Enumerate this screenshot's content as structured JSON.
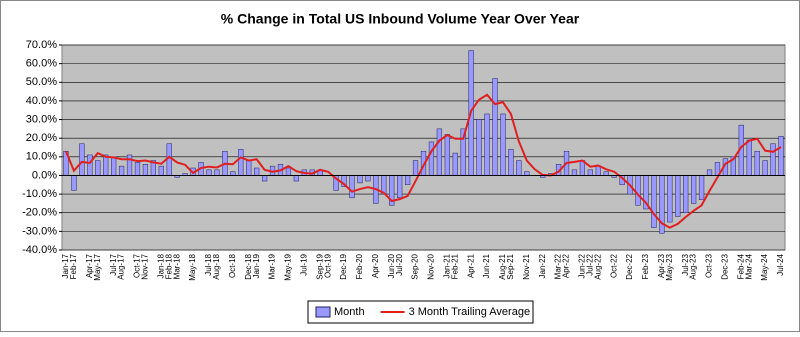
{
  "chart_data": {
    "type": "bar",
    "title": "% Change in Total US Inbound Volume Year Over Year",
    "categories": [
      "Jan-17",
      "Feb-17",
      null,
      "Apr-17",
      "May-17",
      null,
      "Jul-17",
      "Aug-17",
      null,
      "Oct-17",
      "Nov-17",
      null,
      "Jan-18",
      "Feb-18",
      "Mar-18",
      null,
      "May-18",
      null,
      "Jul-18",
      "Aug-18",
      null,
      "Oct-18",
      null,
      "Dec-18",
      "Jan-19",
      null,
      "Mar-19",
      null,
      "May-19",
      null,
      "Jul-19",
      null,
      "Sep-19",
      "Oct-19",
      null,
      "Dec-19",
      null,
      "Feb-20",
      null,
      "Apr-20",
      null,
      "Jun-20",
      "Jul-20",
      null,
      "Sep-20",
      null,
      "Nov-20",
      null,
      "Jan-21",
      "Feb-21",
      null,
      "Apr-21",
      null,
      "Jun-21",
      null,
      "Aug-21",
      "Sep-21",
      null,
      "Nov-21",
      null,
      "Jan-22",
      null,
      "Mar-22",
      "Apr-22",
      null,
      "Jun-22",
      "Jul-22",
      "Aug-22",
      null,
      "Oct-22",
      null,
      "Dec-22",
      null,
      "Feb-23",
      null,
      "Apr-23",
      "May-23",
      null,
      "Jul-23",
      "Aug-23",
      null,
      "Oct-23",
      null,
      "Dec-23",
      null,
      "Feb-24",
      "Mar-24",
      null,
      "May-24",
      null,
      "Jul-24"
    ],
    "series": [
      {
        "name": "Month",
        "type": "bar",
        "color": "#9999ff",
        "values": [
          13,
          -8,
          17,
          11,
          8,
          11,
          10,
          5,
          11,
          7,
          6,
          8,
          5,
          17,
          -1,
          1,
          4,
          7,
          3,
          3,
          13,
          2,
          14,
          8,
          4,
          -3,
          5,
          6,
          4,
          -3,
          3,
          3,
          3,
          0,
          -8,
          -6,
          -12,
          -4,
          -3,
          -15,
          -10,
          -16,
          -12,
          -5,
          8,
          13,
          18,
          25,
          22,
          12,
          25,
          67,
          30,
          33,
          52,
          33,
          14,
          8,
          2,
          0,
          -1,
          1,
          6,
          13,
          3,
          8,
          3,
          5,
          2,
          -1,
          -5,
          -10,
          -16,
          -18,
          -28,
          -31,
          -25,
          -22,
          -20,
          -15,
          -13,
          3,
          7,
          9,
          10,
          27,
          19,
          13,
          8,
          17,
          21
        ]
      },
      {
        "name": "3 Month Trailing Average",
        "type": "line",
        "color": "#e02020",
        "values": [
          13,
          2.5,
          7.3,
          6.7,
          12,
          10,
          9.7,
          8.7,
          8.7,
          7.7,
          8,
          7,
          6.3,
          10,
          7,
          5.7,
          1.3,
          4,
          4.7,
          4.3,
          6.3,
          6,
          9.7,
          8,
          8.7,
          3,
          2,
          2.7,
          5,
          2.3,
          1.3,
          1,
          3,
          2,
          -1.7,
          -4.7,
          -8.7,
          -7.3,
          -6.3,
          -7.3,
          -9.3,
          -13.7,
          -12.7,
          -11,
          -3,
          5.3,
          13,
          18.7,
          21.7,
          19.7,
          19.7,
          34.7,
          40.7,
          43.3,
          38.3,
          39.3,
          33,
          18.3,
          8,
          3.3,
          0.3,
          0,
          2,
          6.7,
          7.3,
          8,
          4.7,
          5.3,
          3.3,
          2,
          -1.3,
          -5.3,
          -10.3,
          -14.7,
          -20.7,
          -25.7,
          -28,
          -26,
          -22.3,
          -19,
          -16,
          -8.3,
          -1,
          6.3,
          8.7,
          15.3,
          18.7,
          19.7,
          13.3,
          12.7,
          15.3
        ]
      }
    ],
    "ylim": [
      -40,
      70
    ],
    "yticks": [
      {
        "value": -40,
        "label": "-40.0%"
      },
      {
        "value": -30,
        "label": "-30.0%"
      },
      {
        "value": -20,
        "label": "-20.0%"
      },
      {
        "value": -10,
        "label": "-10.0%"
      },
      {
        "value": 0,
        "label": "0.0%"
      },
      {
        "value": 10,
        "label": "10.0%"
      },
      {
        "value": 20,
        "label": "20.0%"
      },
      {
        "value": 30,
        "label": "30.0%"
      },
      {
        "value": 40,
        "label": "40.0%"
      },
      {
        "value": 50,
        "label": "50.0%"
      },
      {
        "value": 60,
        "label": "60.0%"
      },
      {
        "value": 70,
        "label": "70.0%"
      }
    ],
    "grid": true,
    "legend": "bottom"
  }
}
